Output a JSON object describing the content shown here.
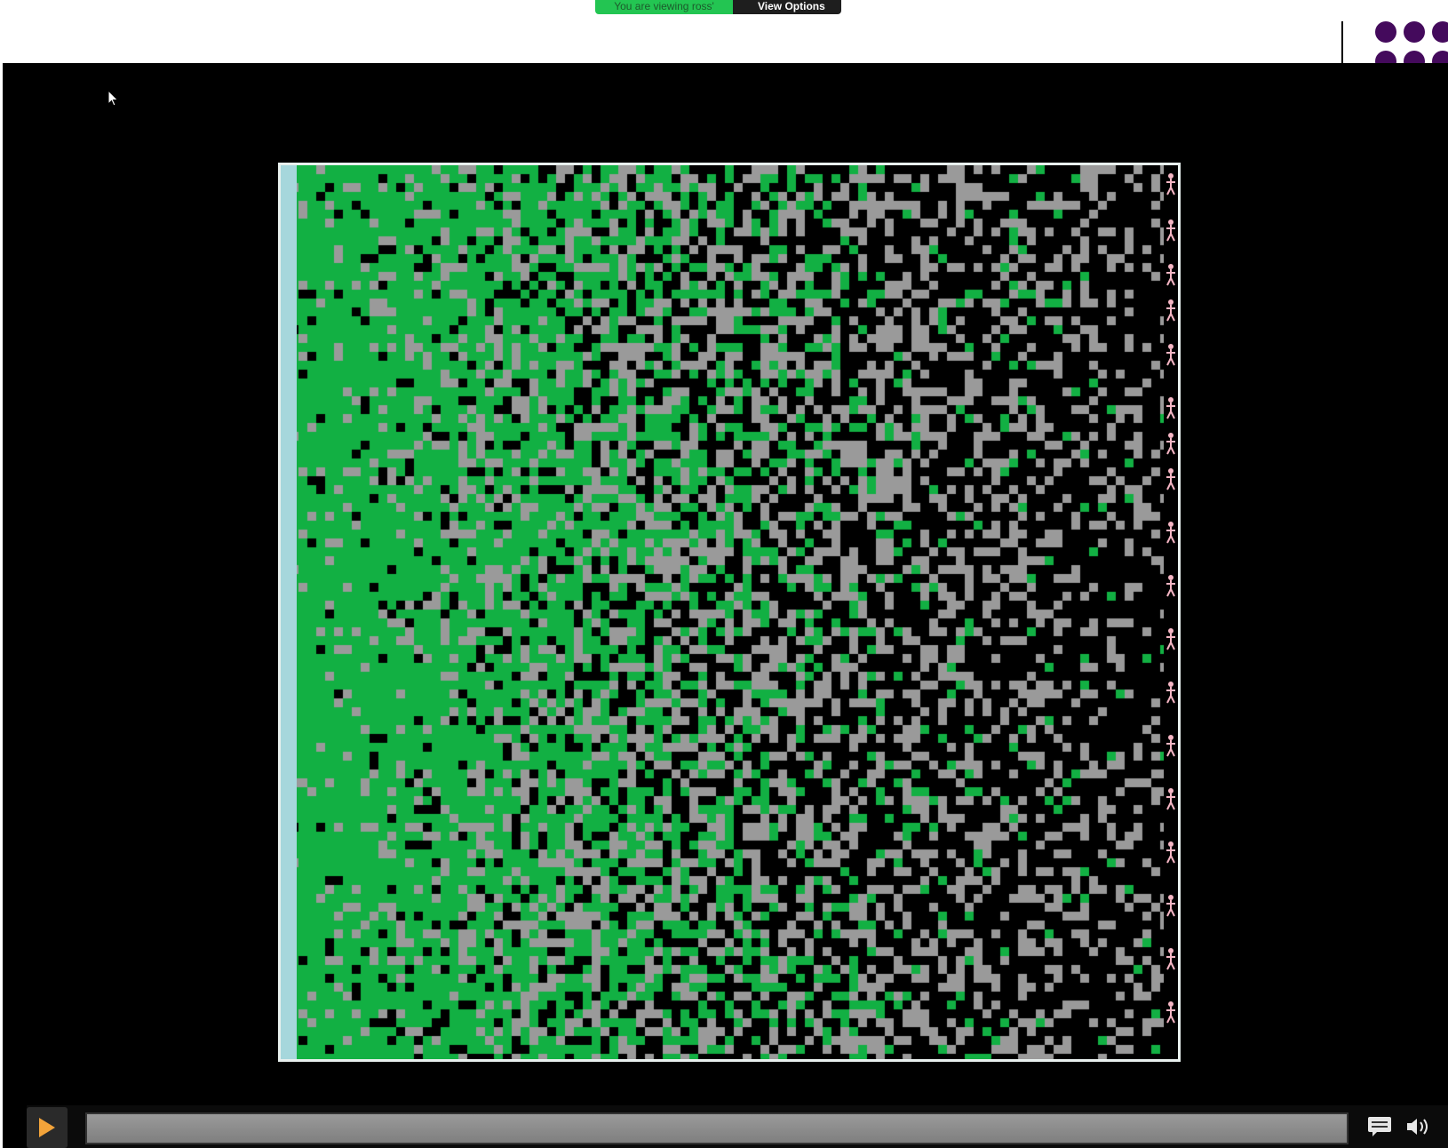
{
  "share_banner": {
    "status_text": "You are viewing ross' screen",
    "view_options_label": "View Options"
  },
  "player": {
    "progress": 0,
    "state": "paused"
  },
  "colors": {
    "banner_green": "#23c552",
    "banner_dark": "#1e1e1e",
    "deco_purple": "#440a5c",
    "sim_green": "#12b043",
    "sim_gray": "#9a9a9a",
    "sim_left_edge": "#a6d7dc",
    "sim_right_edge": "#f5b6c4",
    "play_orange": "#f2a33a"
  },
  "icons": {
    "cursor": "mouse-pointer-icon",
    "play": "play-icon",
    "captions": "captions-icon",
    "volume": "volume-icon",
    "dropdown": "chevron-down-icon",
    "figure": "person-icon"
  }
}
